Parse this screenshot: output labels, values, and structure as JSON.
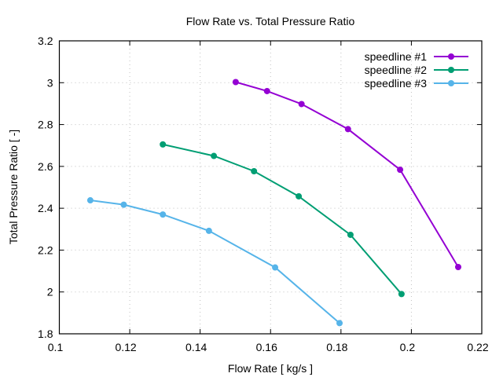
{
  "chart_data": {
    "type": "line",
    "title": "Flow Rate vs. Total Pressure Ratio",
    "xlabel": "Flow Rate [ kg/s ]",
    "ylabel": "Total Pressure Ratio [ -]",
    "xlim": [
      0.1,
      0.22
    ],
    "ylim": [
      1.8,
      3.2
    ],
    "xticks": [
      0.1,
      0.12,
      0.14,
      0.16,
      0.18,
      0.2,
      0.22
    ],
    "xtick_labels": [
      "0.1",
      "0.12",
      "0.14",
      "0.16",
      "0.18",
      "0.2",
      "0.22"
    ],
    "yticks": [
      1.8,
      2.0,
      2.2,
      2.4,
      2.6,
      2.8,
      3.0,
      3.2
    ],
    "ytick_labels": [
      "1.8",
      "2",
      "2.2",
      "2.4",
      "2.6",
      "2.8",
      "3",
      "3.2"
    ],
    "grid": true,
    "legend_position": "top-right",
    "series": [
      {
        "name": "speedline #1",
        "color": "#9400d3",
        "x": [
          0.1501,
          0.159,
          0.1688,
          0.182,
          0.1968,
          0.2133
        ],
        "y": [
          3.003,
          2.96,
          2.898,
          2.778,
          2.584,
          2.119
        ]
      },
      {
        "name": "speedline #2",
        "color": "#009e73",
        "x": [
          0.1294,
          0.1439,
          0.1553,
          0.168,
          0.1827,
          0.1972
        ],
        "y": [
          2.705,
          2.65,
          2.577,
          2.457,
          2.273,
          1.99
        ]
      },
      {
        "name": "speedline #3",
        "color": "#56b4e9",
        "x": [
          0.1088,
          0.1183,
          0.1294,
          0.1425,
          0.1613,
          0.1796
        ],
        "y": [
          2.438,
          2.417,
          2.37,
          2.292,
          2.117,
          1.851
        ]
      }
    ]
  }
}
